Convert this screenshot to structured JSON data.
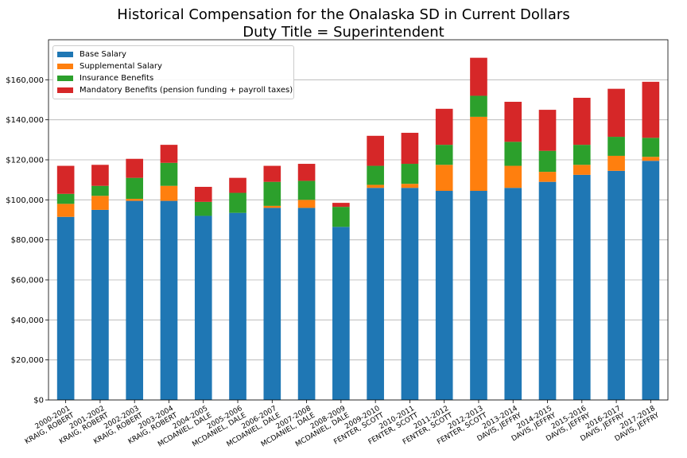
{
  "chart_data": {
    "type": "bar",
    "stacked": true,
    "title": "Historical Compensation for the Onalaska SD in Current Dollars",
    "subtitle": "Duty Title = Superintendent",
    "xlabel": "",
    "ylabel": "",
    "ylim": [
      0,
      180000
    ],
    "yticks": [
      0,
      20000,
      40000,
      60000,
      80000,
      100000,
      120000,
      140000,
      160000
    ],
    "ytick_labels": [
      "$0",
      "$20,000",
      "$40,000",
      "$60,000",
      "$80,000",
      "$100,000",
      "$120,000",
      "$140,000",
      "$160,000"
    ],
    "grid": "horizontal",
    "legend_position": "top-left",
    "categories": [
      {
        "year": "2000-2001",
        "name": "KRAIG, ROBERT"
      },
      {
        "year": "2001-2002",
        "name": "KRAIG, ROBERT"
      },
      {
        "year": "2002-2003",
        "name": "KRAIG, ROBERT"
      },
      {
        "year": "2003-2004",
        "name": "KRAIG, ROBERT"
      },
      {
        "year": "2004-2005",
        "name": "MCDANIEL, DALE"
      },
      {
        "year": "2005-2006",
        "name": "MCDANIEL, DALE"
      },
      {
        "year": "2006-2007",
        "name": "MCDANIEL, DALE"
      },
      {
        "year": "2007-2008",
        "name": "MCDANIEL, DALE"
      },
      {
        "year": "2008-2009",
        "name": "MCDANIEL, DALE"
      },
      {
        "year": "2009-2010",
        "name": "FENTER, SCOTT"
      },
      {
        "year": "2010-2011",
        "name": "FENTER, SCOTT"
      },
      {
        "year": "2011-2012",
        "name": "FENTER, SCOTT"
      },
      {
        "year": "2012-2013",
        "name": "FENTER, SCOTT"
      },
      {
        "year": "2013-2014",
        "name": "DAVIS, JEFFRY"
      },
      {
        "year": "2014-2015",
        "name": "DAVIS, JEFFRY"
      },
      {
        "year": "2015-2016",
        "name": "DAVIS, JEFFRY"
      },
      {
        "year": "2016-2017",
        "name": "DAVIS, JEFFRY"
      },
      {
        "year": "2017-2018",
        "name": "DAVIS, JEFFRY"
      }
    ],
    "series": [
      {
        "name": "Base Salary",
        "color": "#1f77b4",
        "values": [
          91500,
          95000,
          99500,
          99500,
          92000,
          93500,
          96000,
          96000,
          86500,
          106000,
          106000,
          104500,
          104500,
          106000,
          109000,
          112500,
          114500,
          119500
        ]
      },
      {
        "name": "Supplemental Salary",
        "color": "#ff7f0e",
        "values": [
          6500,
          7000,
          1000,
          7500,
          0,
          0,
          1000,
          4000,
          0,
          1500,
          2000,
          13000,
          37000,
          11000,
          5000,
          5000,
          7500,
          2000
        ]
      },
      {
        "name": "Insurance Benefits",
        "color": "#2ca02c",
        "values": [
          5000,
          5000,
          10500,
          11500,
          7000,
          10000,
          12000,
          9500,
          10000,
          9500,
          10000,
          10000,
          10500,
          12000,
          10500,
          10000,
          9500,
          9500
        ]
      },
      {
        "name": "Mandatory Benefits (pension funding + payroll taxes)",
        "color": "#d62728",
        "values": [
          14000,
          10500,
          9500,
          9000,
          7500,
          7500,
          8000,
          8500,
          2000,
          15000,
          15500,
          18000,
          19000,
          20000,
          20500,
          23500,
          24000,
          28000
        ]
      }
    ]
  }
}
